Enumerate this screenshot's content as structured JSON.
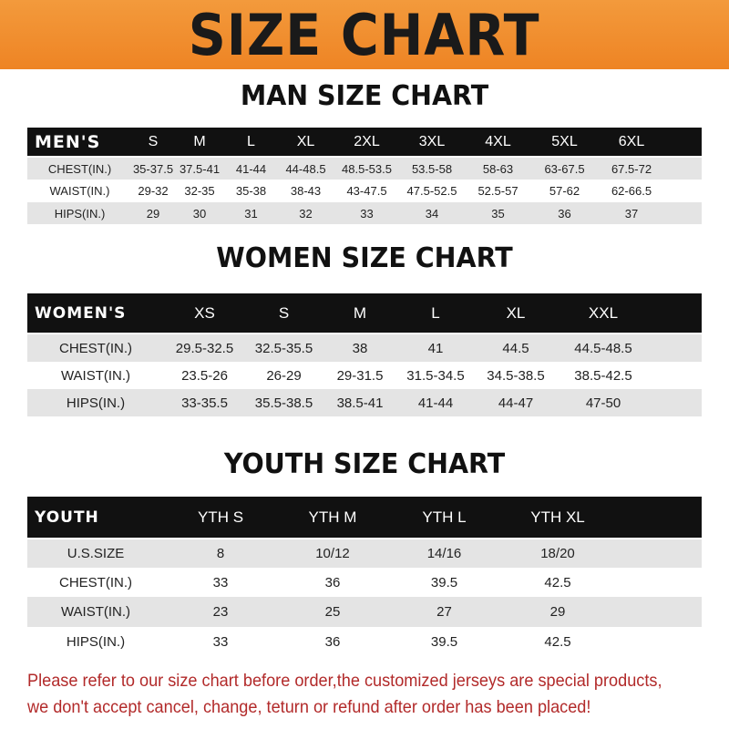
{
  "title": "SIZE CHART",
  "men": {
    "heading": "MAN SIZE CHART",
    "label": "MEN'S",
    "sizes": [
      "S",
      "M",
      "L",
      "XL",
      "2XL",
      "3XL",
      "4XL",
      "5XL",
      "6XL"
    ],
    "rows": [
      {
        "label": "CHEST(IN.)",
        "values": [
          "35-37.5",
          "37.5-41",
          "41-44",
          "44-48.5",
          "48.5-53.5",
          "53.5-58",
          "58-63",
          "63-67.5",
          "67.5-72"
        ]
      },
      {
        "label": "WAIST(IN.)",
        "values": [
          "29-32",
          "32-35",
          "35-38",
          "38-43",
          "43-47.5",
          "47.5-52.5",
          "52.5-57",
          "57-62",
          "62-66.5"
        ]
      },
      {
        "label": "HIPS(IN.)",
        "values": [
          "29",
          "30",
          "31",
          "32",
          "33",
          "34",
          "35",
          "36",
          "37"
        ]
      }
    ]
  },
  "women": {
    "heading": "WOMEN SIZE CHART",
    "label": "WOMEN'S",
    "sizes": [
      "XS",
      "S",
      "M",
      "L",
      "XL",
      "XXL"
    ],
    "rows": [
      {
        "label": "CHEST(IN.)",
        "values": [
          "29.5-32.5",
          "32.5-35.5",
          "38",
          "41",
          "44.5",
          "44.5-48.5"
        ]
      },
      {
        "label": "WAIST(IN.)",
        "values": [
          "23.5-26",
          "26-29",
          "29-31.5",
          "31.5-34.5",
          "34.5-38.5",
          "38.5-42.5"
        ]
      },
      {
        "label": "HIPS(IN.)",
        "values": [
          "33-35.5",
          "35.5-38.5",
          "38.5-41",
          "41-44",
          "44-47",
          "47-50"
        ]
      }
    ]
  },
  "youth": {
    "heading": "YOUTH SIZE CHART",
    "label": "YOUTH",
    "sizes": [
      "YTH S",
      "YTH M",
      "YTH L",
      "YTH XL"
    ],
    "rows": [
      {
        "label": "U.S.SIZE",
        "values": [
          "8",
          "10/12",
          "14/16",
          "18/20"
        ]
      },
      {
        "label": "CHEST(IN.)",
        "values": [
          "33",
          "36",
          "39.5",
          "42.5"
        ]
      },
      {
        "label": "WAIST(IN.)",
        "values": [
          "23",
          "25",
          "27",
          "29"
        ]
      },
      {
        "label": "HIPS(IN.)",
        "values": [
          "33",
          "36",
          "39.5",
          "42.5"
        ]
      }
    ]
  },
  "note": [
    "Please refer to our size chart before order,the customized jerseys are special products,",
    "we don't accept cancel, change, teturn or refund after order has been placed!"
  ],
  "colors": {
    "banner": "#ef8a2c",
    "header_row": "#111111",
    "stripe": "#e4e4e4",
    "note": "#b22a2a"
  }
}
